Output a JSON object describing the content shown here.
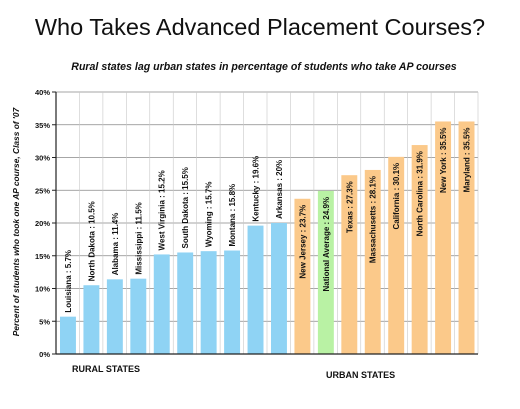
{
  "chart_data": {
    "type": "bar",
    "title": "Who Takes Advanced Placement Courses?",
    "subtitle": "Rural states lag urban states in percentage of students who take AP courses",
    "ylabel": "Percent of students who took one AP course, Class of '07",
    "xlabel": "",
    "ylim": [
      0,
      40
    ],
    "yticks": [
      "0%",
      "5%",
      "10%",
      "15%",
      "20%",
      "25%",
      "30%",
      "35%",
      "40%"
    ],
    "grid": true,
    "categories": [
      "Louisiana",
      "North Dakota",
      "Alabama",
      "Mississippi",
      "West Virginia",
      "South Dakota",
      "Wyoming",
      "Montana",
      "Kentucky",
      "Arkansas",
      "New Jersey",
      "National Average",
      "Texas",
      "Massachusetts",
      "California",
      "North Carolina",
      "New York",
      "Maryland"
    ],
    "values": [
      5.7,
      10.5,
      11.4,
      11.5,
      15.2,
      15.5,
      15.7,
      15.8,
      19.6,
      20,
      23.7,
      24.9,
      27.3,
      28.1,
      30.1,
      31.9,
      35.5,
      35.5
    ],
    "bar_labels": [
      "Louisiana : 5.7%",
      "North Dakota : 10.5%",
      "Alabama : 11.4%",
      "Mississippi : 11.5%",
      "West Virginia : 15.2%",
      "South Dakota : 15.5%",
      "Wyoming : 15.7%",
      "Montana : 15.8%",
      "Kentucky : 19.6%",
      "Arkansas : 20%",
      "New Jersey : 23.7%",
      "National Average : 24.9%",
      "Texas : 27.3%",
      "Massachusetts : 28.1%",
      "California : 30.1%",
      "North Carolina : 31.9%",
      "New York : 35.5%",
      "Maryland : 35.5%"
    ],
    "groups": [
      "rural",
      "rural",
      "rural",
      "rural",
      "rural",
      "rural",
      "rural",
      "rural",
      "rural",
      "rural",
      "urban",
      "average",
      "urban",
      "urban",
      "urban",
      "urban",
      "urban",
      "urban"
    ],
    "group_labels": {
      "rural": "RURAL STATES",
      "urban": "URBAN STATES"
    },
    "colors": {
      "rural": "#8fd3f4",
      "urban": "#fbc98a",
      "average": "#b9f2a4",
      "grid": "#888888",
      "axis": "#222222"
    }
  }
}
